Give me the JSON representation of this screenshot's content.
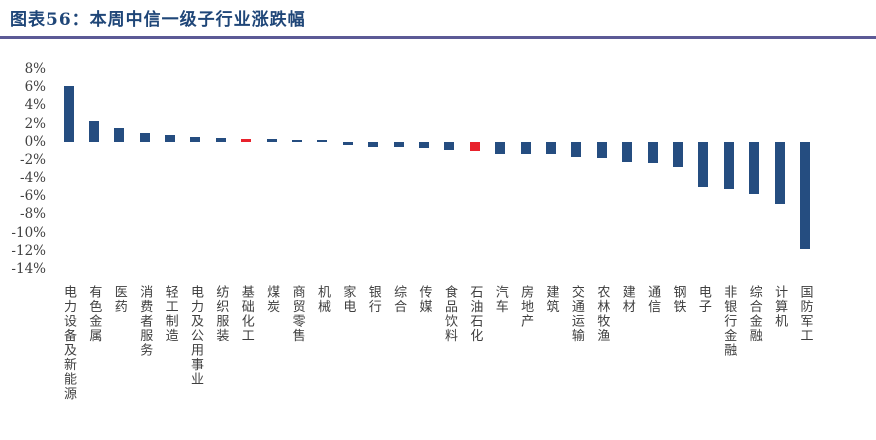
{
  "header": {
    "title": "图表56：本周中信一级子行业涨跌幅"
  },
  "colors": {
    "background": "#ffffff",
    "title": "#1f4678",
    "rule": "#5c5a96",
    "bar": "#254d80",
    "bar_highlight": "#e8222c",
    "axis_text": "#404040",
    "label_text": "#3f3f3f"
  },
  "chart_data": {
    "type": "bar",
    "title": "本周中信一级子行业涨跌幅",
    "unit": "%",
    "xlabel": "",
    "ylabel": "",
    "ylim": [
      -14,
      8
    ],
    "ytick_step": 2,
    "yticks": [
      "8%",
      "6%",
      "4%",
      "2%",
      "0%",
      "-2%",
      "-4%",
      "-6%",
      "-8%",
      "-10%",
      "-12%",
      "-14%"
    ],
    "grid": false,
    "legend": "none",
    "categories": [
      "电力设备及新能源",
      "有色金属",
      "医药",
      "消费者服务",
      "轻工制造",
      "电力及公用事业",
      "纺织服装",
      "基础化工",
      "煤炭",
      "商贸零售",
      "机械",
      "家电",
      "银行",
      "综合",
      "传媒",
      "食品饮料",
      "石油石化",
      "汽车",
      "房地产",
      "建筑",
      "交通运输",
      "农林牧渔",
      "建材",
      "通信",
      "钢铁",
      "电子",
      "非银行金融",
      "综合金融",
      "计算机",
      "国防军工"
    ],
    "values": [
      6.1,
      2.3,
      1.5,
      1.0,
      0.7,
      0.5,
      0.4,
      0.3,
      0.25,
      0.2,
      0.1,
      -0.4,
      -0.55,
      -0.6,
      -0.65,
      -0.95,
      -1.0,
      -1.3,
      -1.35,
      -1.4,
      -1.7,
      -1.8,
      -2.2,
      -2.3,
      -2.8,
      -5.0,
      -5.2,
      -5.8,
      -6.9,
      -11.8
    ],
    "highlight_indexes": [
      7,
      16
    ],
    "highlighted_categories": [
      "基础化工",
      "石油石化"
    ]
  }
}
